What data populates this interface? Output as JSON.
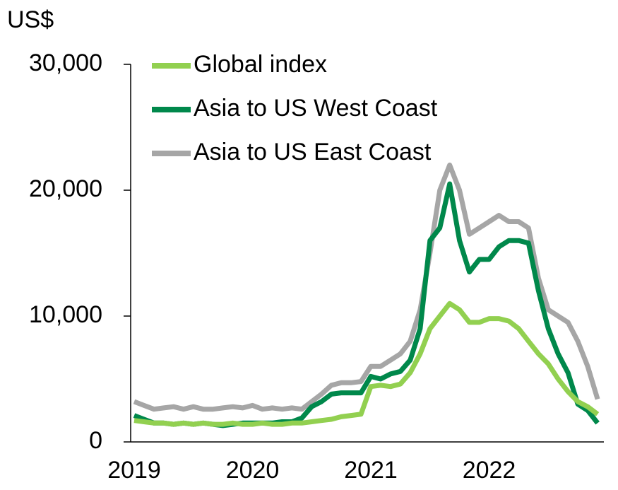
{
  "chart_data": {
    "type": "line",
    "y_label": "US$",
    "x": [
      2019.0,
      2019.083,
      2019.167,
      2019.25,
      2019.333,
      2019.417,
      2019.5,
      2019.583,
      2019.667,
      2019.75,
      2019.833,
      2019.917,
      2020.0,
      2020.083,
      2020.167,
      2020.25,
      2020.333,
      2020.417,
      2020.5,
      2020.583,
      2020.667,
      2020.75,
      2020.833,
      2020.917,
      2021.0,
      2021.083,
      2021.167,
      2021.25,
      2021.333,
      2021.417,
      2021.5,
      2021.583,
      2021.667,
      2021.75,
      2021.833,
      2021.917,
      2022.0,
      2022.083,
      2022.167,
      2022.25,
      2022.333,
      2022.417,
      2022.5,
      2022.583,
      2022.667,
      2022.75,
      2022.833,
      2022.917
    ],
    "series": [
      {
        "name": "Global index",
        "color": "#92d050",
        "values": [
          1700,
          1600,
          1500,
          1500,
          1400,
          1500,
          1400,
          1500,
          1400,
          1400,
          1500,
          1400,
          1400,
          1500,
          1400,
          1400,
          1500,
          1500,
          1600,
          1700,
          1800,
          2000,
          2100,
          2200,
          4400,
          4500,
          4400,
          4600,
          5500,
          7000,
          9000,
          10000,
          11000,
          10500,
          9500,
          9500,
          9800,
          9800,
          9600,
          9000,
          8000,
          7000,
          6200,
          5000,
          4000,
          3200,
          2800,
          2200
        ]
      },
      {
        "name": "Asia to US West Coast",
        "color": "#00884b",
        "values": [
          2100,
          1800,
          1500,
          1500,
          1400,
          1500,
          1400,
          1500,
          1400,
          1300,
          1400,
          1500,
          1500,
          1500,
          1500,
          1600,
          1600,
          1900,
          2800,
          3200,
          3800,
          3900,
          3900,
          3900,
          5200,
          5000,
          5400,
          5600,
          6500,
          9000,
          16000,
          17000,
          20500,
          16000,
          13500,
          14500,
          14500,
          15500,
          16000,
          16000,
          15800,
          12000,
          9000,
          7000,
          5500,
          3000,
          2500,
          1500
        ]
      },
      {
        "name": "Asia to US East Coast",
        "color": "#a6a6a6",
        "values": [
          3200,
          2900,
          2600,
          2700,
          2800,
          2600,
          2800,
          2600,
          2600,
          2700,
          2800,
          2700,
          2900,
          2600,
          2700,
          2600,
          2700,
          2600,
          3200,
          3800,
          4500,
          4700,
          4700,
          4800,
          6000,
          6000,
          6500,
          7000,
          8000,
          10500,
          15000,
          20000,
          22000,
          20000,
          16500,
          17000,
          17500,
          18000,
          17500,
          17500,
          17000,
          13000,
          10500,
          10000,
          9500,
          8000,
          6000,
          3400
        ]
      }
    ],
    "xlim": [
      2018.97,
      2022.97
    ],
    "xticks": [
      2019,
      2020,
      2021,
      2022
    ],
    "ylim": [
      0,
      30000
    ],
    "yticks": [
      0,
      {
        "value": 10000,
        "label": "10,000"
      },
      {
        "value": 20000,
        "label": "20,000"
      },
      {
        "value": 30000,
        "label": "30,000"
      }
    ],
    "legend": "upper left"
  }
}
